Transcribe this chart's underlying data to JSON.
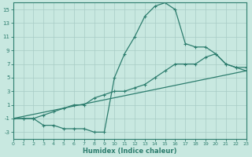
{
  "line1_x": [
    0,
    1,
    2,
    3,
    4,
    5,
    6,
    7,
    8,
    9,
    10,
    11,
    12,
    13,
    14,
    15,
    16,
    17,
    18,
    19,
    20,
    21,
    22,
    23
  ],
  "line1_y": [
    -1,
    -1,
    -1,
    -2,
    -2,
    -2.5,
    -2.5,
    -2.5,
    -3,
    -3,
    5,
    8.5,
    11,
    14,
    15.5,
    16,
    15,
    10,
    9.5,
    9.5,
    8.5,
    7,
    6.5,
    6
  ],
  "line2_x": [
    0,
    1,
    2,
    3,
    4,
    5,
    6,
    7,
    8,
    9,
    10,
    11,
    12,
    13,
    14,
    15,
    16,
    17,
    18,
    19,
    20,
    21,
    22,
    23
  ],
  "line2_y": [
    -1,
    -1,
    -1,
    -0.5,
    0,
    0.5,
    1,
    1,
    2,
    2.5,
    3,
    3,
    3.5,
    4,
    5,
    6,
    7,
    7,
    7,
    8,
    8.5,
    7,
    6.5,
    6.5
  ],
  "line3_x": [
    0,
    23
  ],
  "line3_y": [
    -1,
    6
  ],
  "line_color": "#2d7d6e",
  "bg_color": "#c8e8e0",
  "grid_color": "#a8ccc5",
  "xlabel": "Humidex (Indice chaleur)",
  "xlim": [
    0,
    23
  ],
  "ylim": [
    -4,
    16
  ],
  "yticks": [
    -3,
    -1,
    1,
    3,
    5,
    7,
    9,
    11,
    13,
    15
  ],
  "xticks": [
    0,
    1,
    2,
    3,
    4,
    5,
    6,
    7,
    8,
    9,
    10,
    11,
    12,
    13,
    14,
    15,
    16,
    17,
    18,
    19,
    20,
    21,
    22,
    23
  ]
}
